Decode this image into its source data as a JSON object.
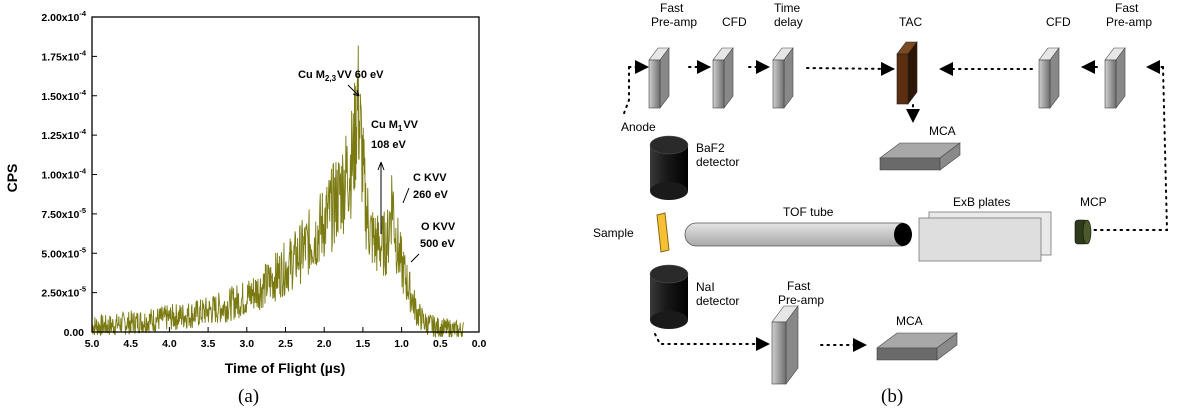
{
  "chart_data": {
    "type": "line",
    "xlabel": "Time of Flight (µs)",
    "ylabel": "CPS",
    "xlim": [
      5.0,
      0.0
    ],
    "ylim": [
      0,
      0.0002
    ],
    "x_reversed": true,
    "x_ticks": [
      "5.0",
      "4.5",
      "4.0",
      "3.5",
      "3.0",
      "2.5",
      "2.0",
      "1.5",
      "1.0",
      "0.5",
      "0.0"
    ],
    "y_ticks": [
      "0.00",
      "2.50x10",
      "5.00x10",
      "7.50x10",
      "1.00x10",
      "1.25x10",
      "1.50x10",
      "1.75x10",
      "2.00x10"
    ],
    "y_tick_exponents": [
      "",
      "-5",
      "-5",
      "-5",
      "-4",
      "-4",
      "-4",
      "-4",
      "-4"
    ],
    "series_color": "#7a7a10",
    "points": [
      [
        4.8,
        4e-06
      ],
      [
        4.5,
        6e-06
      ],
      [
        4.0,
        9e-06
      ],
      [
        3.6,
        1.2e-05
      ],
      [
        3.3,
        1.6e-05
      ],
      [
        3.0,
        2.2e-05
      ],
      [
        2.7,
        3.2e-05
      ],
      [
        2.4,
        4.5e-05
      ],
      [
        2.1,
        6.2e-05
      ],
      [
        1.9,
        7.8e-05
      ],
      [
        1.75,
        9.4e-05
      ],
      [
        1.62,
        0.000112
      ],
      [
        1.57,
        0.00015
      ],
      [
        1.52,
        0.000118
      ],
      [
        1.47,
        8.2e-05
      ],
      [
        1.4,
        6.2e-05
      ],
      [
        1.32,
        5.6e-05
      ],
      [
        1.25,
        5.5e-05
      ],
      [
        1.18,
        5.8e-05
      ],
      [
        1.12,
        8.8e-05
      ],
      [
        1.08,
        6.2e-05
      ],
      [
        1.02,
        4.6e-05
      ],
      [
        0.96,
        3.6e-05
      ],
      [
        0.88,
        2.4e-05
      ],
      [
        0.8,
        1.2e-05
      ],
      [
        0.7,
        6e-06
      ],
      [
        0.55,
        3e-06
      ],
      [
        0.4,
        2e-06
      ],
      [
        0.25,
        1e-06
      ]
    ],
    "annotations": [
      {
        "text": "Cu M",
        "sub": "2,3",
        "rest": "VV 60 eV"
      },
      {
        "text": "Cu M",
        "sub": "1",
        "rest": "VV"
      },
      {
        "text": "108 eV"
      },
      {
        "text": "C KVV"
      },
      {
        "text": "260 eV"
      },
      {
        "text": "O KVV"
      },
      {
        "text": "500 eV"
      }
    ]
  },
  "diagram": {
    "labels": {
      "fast_preamp_1": [
        "Fast",
        "Pre-amp"
      ],
      "cfd_1": "CFD",
      "time_delay": [
        "Time",
        "delay"
      ],
      "tac": "TAC",
      "cfd_2": "CFD",
      "fast_preamp_2": [
        "Fast",
        "Pre-amp"
      ],
      "mca_top": "MCA",
      "anode": "Anode",
      "baf2": [
        "BaF2",
        "detector"
      ],
      "sample": "Sample",
      "tof_tube": "TOF tube",
      "exb": "ExB plates",
      "mcp": "MCP",
      "nai": [
        "NaI",
        "detector"
      ],
      "fast_preamp_3": [
        "Fast",
        "Pre-amp"
      ],
      "mca_bottom": "MCA"
    },
    "colors": {
      "tac": "#5a2e0e",
      "sample": "#f5c033",
      "mcp": "#2e3a1a"
    }
  },
  "subfig_labels": {
    "a": "(a)",
    "b": "(b)"
  }
}
